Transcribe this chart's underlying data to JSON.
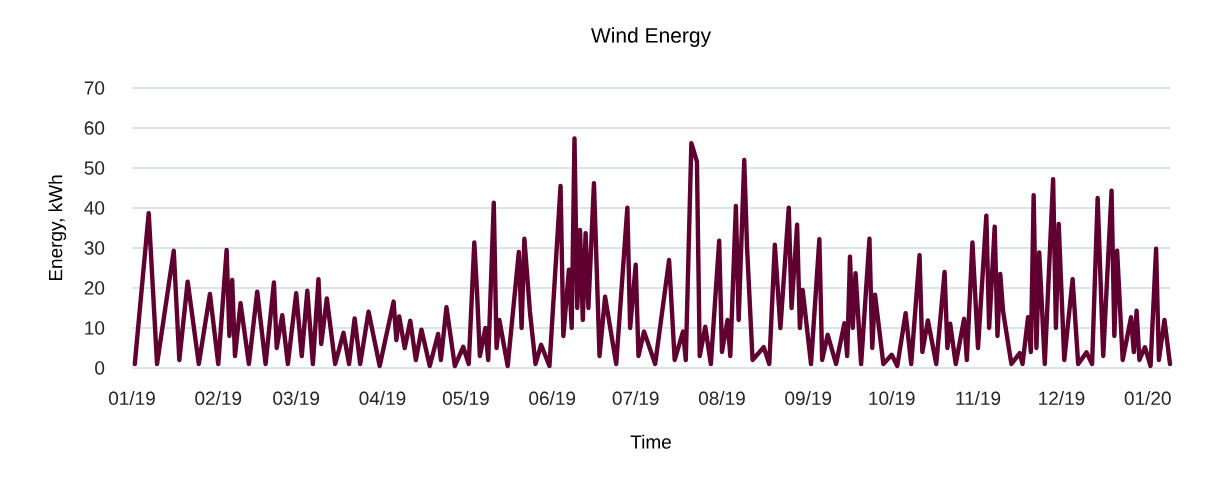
{
  "chart_data": {
    "type": "line",
    "title": "Wind Energy",
    "xlabel": "Time",
    "ylabel": "Energy, kWh",
    "x": [
      "2019-01-02",
      "2019-01-07",
      "2019-01-10",
      "2019-01-16",
      "2019-01-18",
      "2019-01-21",
      "2019-01-25",
      "2019-01-29",
      "2019-02-01",
      "2019-02-04",
      "2019-02-05",
      "2019-02-06",
      "2019-02-07",
      "2019-02-09",
      "2019-02-12",
      "2019-02-15",
      "2019-02-18",
      "2019-02-21",
      "2019-02-22",
      "2019-02-24",
      "2019-02-26",
      "2019-03-01",
      "2019-03-03",
      "2019-03-05",
      "2019-03-07",
      "2019-03-09",
      "2019-03-10",
      "2019-03-12",
      "2019-03-15",
      "2019-03-18",
      "2019-03-20",
      "2019-03-22",
      "2019-03-24",
      "2019-03-27",
      "2019-03-31",
      "2019-04-05",
      "2019-04-06",
      "2019-04-07",
      "2019-04-09",
      "2019-04-11",
      "2019-04-13",
      "2019-04-15",
      "2019-04-18",
      "2019-04-21",
      "2019-04-22",
      "2019-04-24",
      "2019-04-27",
      "2019-04-30",
      "2019-05-02",
      "2019-05-04",
      "2019-05-05",
      "2019-05-06",
      "2019-05-08",
      "2019-05-09",
      "2019-05-11",
      "2019-05-12",
      "2019-05-13",
      "2019-05-16",
      "2019-05-20",
      "2019-05-21",
      "2019-05-22",
      "2019-05-24",
      "2019-05-26",
      "2019-05-28",
      "2019-05-31",
      "2019-06-04",
      "2019-06-05",
      "2019-06-07",
      "2019-06-08",
      "2019-06-09",
      "2019-06-10",
      "2019-06-11",
      "2019-06-12",
      "2019-06-13",
      "2019-06-14",
      "2019-06-16",
      "2019-06-18",
      "2019-06-20",
      "2019-06-24",
      "2019-06-28",
      "2019-06-29",
      "2019-07-01",
      "2019-07-02",
      "2019-07-04",
      "2019-07-08",
      "2019-07-13",
      "2019-07-15",
      "2019-07-18",
      "2019-07-19",
      "2019-07-21",
      "2019-07-23",
      "2019-07-24",
      "2019-07-26",
      "2019-07-28",
      "2019-07-31",
      "2019-08-01",
      "2019-08-03",
      "2019-08-04",
      "2019-08-06",
      "2019-08-07",
      "2019-08-09",
      "2019-08-10",
      "2019-08-12",
      "2019-08-16",
      "2019-08-18",
      "2019-08-20",
      "2019-08-22",
      "2019-08-25",
      "2019-08-26",
      "2019-08-28",
      "2019-08-29",
      "2019-08-30",
      "2019-09-02",
      "2019-09-05",
      "2019-09-06",
      "2019-09-08",
      "2019-09-11",
      "2019-09-14",
      "2019-09-15",
      "2019-09-16",
      "2019-09-17",
      "2019-09-18",
      "2019-09-20",
      "2019-09-23",
      "2019-09-24",
      "2019-09-25",
      "2019-09-28",
      "2019-10-01",
      "2019-10-03",
      "2019-10-06",
      "2019-10-08",
      "2019-10-11",
      "2019-10-12",
      "2019-10-14",
      "2019-10-17",
      "2019-10-20",
      "2019-10-21",
      "2019-10-22",
      "2019-10-24",
      "2019-10-27",
      "2019-10-28",
      "2019-10-30",
      "2019-11-01",
      "2019-11-04",
      "2019-11-05",
      "2019-11-07",
      "2019-11-08",
      "2019-11-09",
      "2019-11-10",
      "2019-11-13",
      "2019-11-16",
      "2019-11-17",
      "2019-11-19",
      "2019-11-20",
      "2019-11-21",
      "2019-11-22",
      "2019-11-23",
      "2019-11-25",
      "2019-11-28",
      "2019-11-29",
      "2019-11-30",
      "2019-12-02",
      "2019-12-05",
      "2019-12-07",
      "2019-12-10",
      "2019-12-12",
      "2019-12-14",
      "2019-12-16",
      "2019-12-19",
      "2019-12-20",
      "2019-12-21",
      "2019-12-23",
      "2019-12-26",
      "2019-12-27",
      "2019-12-28",
      "2019-12-29",
      "2019-12-31",
      "2020-01-02",
      "2020-01-04",
      "2020-01-05",
      "2020-01-07",
      "2020-01-09"
    ],
    "series": [
      {
        "color": "#600030",
        "values": [
          1,
          38.7,
          1,
          29.3,
          2,
          21.6,
          1,
          18.5,
          1,
          29.5,
          8,
          22,
          3,
          16.2,
          1,
          19.1,
          1,
          21.4,
          5,
          13.2,
          1,
          18.7,
          3,
          19.3,
          1,
          22.2,
          6,
          17.4,
          1,
          8.8,
          1,
          12.4,
          1,
          14.1,
          0.5,
          16.6,
          7,
          12.9,
          5,
          11.8,
          2,
          9.6,
          0.5,
          8.5,
          2,
          15.2,
          0.5,
          5.3,
          1,
          31.4,
          18.7,
          3,
          10,
          2,
          41.3,
          5,
          12,
          0.5,
          29,
          10,
          32.3,
          14,
          1,
          5.8,
          0.5,
          45.5,
          8,
          24.6,
          10,
          57.4,
          15,
          34.5,
          12,
          33.7,
          15,
          46.2,
          3,
          17.8,
          1,
          40.1,
          10,
          25.8,
          3,
          9.1,
          1,
          27,
          2,
          9.1,
          2,
          56.2,
          51.6,
          3,
          10.3,
          1,
          31.8,
          4,
          12,
          3,
          40.5,
          12,
          52,
          30.3,
          2,
          5.2,
          1,
          30.8,
          10,
          40.1,
          15,
          35.8,
          10,
          19.5,
          1,
          32.2,
          2,
          8.3,
          1,
          11.2,
          3,
          27.8,
          10,
          23.7,
          1,
          32.3,
          5,
          18.3,
          1,
          3.3,
          0.5,
          13.7,
          1,
          28.2,
          4,
          11.9,
          1,
          24,
          5,
          11.1,
          1,
          12.3,
          2,
          31.4,
          5,
          38.1,
          10,
          35.3,
          8,
          23.5,
          14.3,
          1,
          3.7,
          1,
          12.7,
          4,
          43.2,
          5,
          28.9,
          1,
          47.2,
          10,
          36,
          2,
          22.2,
          1,
          3.9,
          1,
          42.5,
          3,
          44.3,
          8,
          29.3,
          2,
          12.7,
          4,
          14.3,
          2,
          5.2,
          0.5,
          29.8,
          2,
          12,
          1
        ]
      }
    ],
    "xlim": [
      "2019-01-01",
      "2020-01-09"
    ],
    "xticks": [
      {
        "value": "2019-01-01",
        "label": "01/19"
      },
      {
        "value": "2019-02-01",
        "label": "02/19"
      },
      {
        "value": "2019-03-01",
        "label": "03/19"
      },
      {
        "value": "2019-04-01",
        "label": "04/19"
      },
      {
        "value": "2019-05-01",
        "label": "05/19"
      },
      {
        "value": "2019-06-01",
        "label": "06/19"
      },
      {
        "value": "2019-07-01",
        "label": "07/19"
      },
      {
        "value": "2019-08-01",
        "label": "08/19"
      },
      {
        "value": "2019-09-01",
        "label": "09/19"
      },
      {
        "value": "2019-10-01",
        "label": "10/19"
      },
      {
        "value": "2019-11-01",
        "label": "11/19"
      },
      {
        "value": "2019-12-01",
        "label": "12/19"
      },
      {
        "value": "2020-01-01",
        "label": "01/20"
      }
    ],
    "ylim": [
      0,
      70
    ],
    "yticks": [
      0,
      10,
      20,
      30,
      40,
      50,
      60,
      70
    ],
    "grid": "y"
  }
}
